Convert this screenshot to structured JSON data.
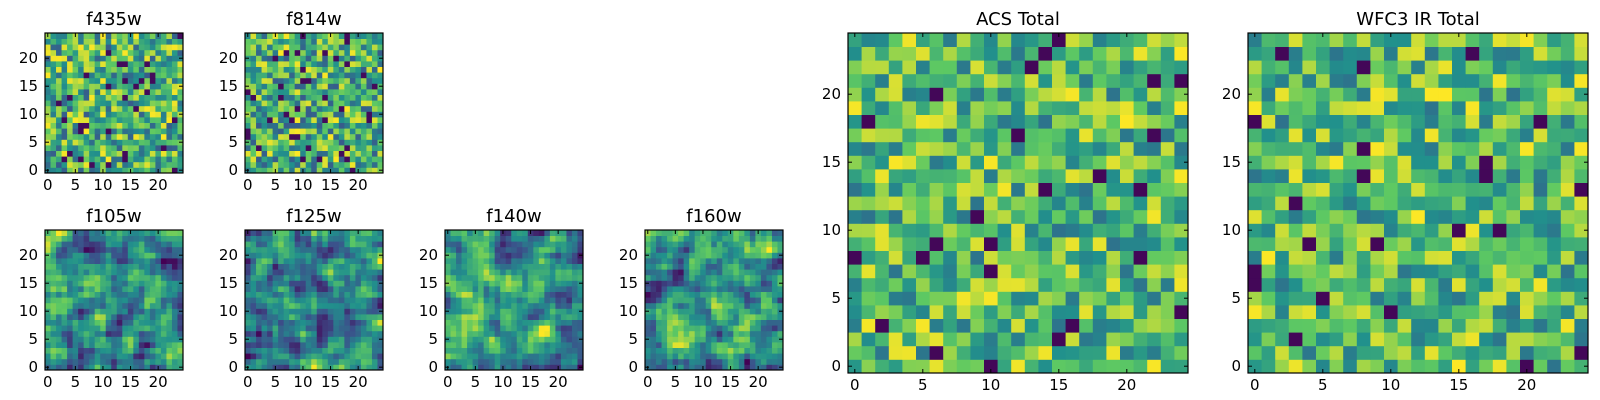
{
  "colormap": [
    "#440154",
    "#3b528b",
    "#21918c",
    "#5ec962",
    "#fde725"
  ],
  "chart_data": [
    {
      "type": "heatmap",
      "title": "f435w",
      "xticks": [
        0,
        5,
        10,
        15,
        20
      ],
      "yticks": [
        0,
        5,
        10,
        15,
        20
      ],
      "xlim": [
        0,
        24
      ],
      "ylim": [
        0,
        24
      ],
      "grid_size": 25,
      "texture": "noisy",
      "seed": 11
    },
    {
      "type": "heatmap",
      "title": "f814w",
      "xticks": [
        0,
        5,
        10,
        15,
        20
      ],
      "yticks": [
        0,
        5,
        10,
        15,
        20
      ],
      "xlim": [
        0,
        24
      ],
      "ylim": [
        0,
        24
      ],
      "grid_size": 25,
      "texture": "noisy",
      "seed": 23
    },
    {
      "type": "heatmap",
      "title": "f105w",
      "xticks": [
        0,
        5,
        10,
        15,
        20
      ],
      "yticks": [
        0,
        5,
        10,
        15,
        20
      ],
      "xlim": [
        0,
        24
      ],
      "ylim": [
        0,
        24
      ],
      "grid_size": 25,
      "texture": "smooth",
      "seed": 37
    },
    {
      "type": "heatmap",
      "title": "f125w",
      "xticks": [
        0,
        5,
        10,
        15,
        20
      ],
      "yticks": [
        0,
        5,
        10,
        15,
        20
      ],
      "xlim": [
        0,
        24
      ],
      "ylim": [
        0,
        24
      ],
      "grid_size": 25,
      "texture": "smooth",
      "seed": 41
    },
    {
      "type": "heatmap",
      "title": "f140w",
      "xticks": [
        0,
        5,
        10,
        15,
        20
      ],
      "yticks": [
        0,
        5,
        10,
        15,
        20
      ],
      "xlim": [
        0,
        24
      ],
      "ylim": [
        0,
        24
      ],
      "grid_size": 25,
      "texture": "smooth",
      "seed": 53
    },
    {
      "type": "heatmap",
      "title": "f160w",
      "xticks": [
        0,
        5,
        10,
        15,
        20
      ],
      "yticks": [
        0,
        5,
        10,
        15,
        20
      ],
      "xlim": [
        0,
        24
      ],
      "ylim": [
        0,
        24
      ],
      "grid_size": 25,
      "texture": "smooth",
      "seed": 67
    },
    {
      "type": "heatmap",
      "title": "ACS Total",
      "xticks": [
        0,
        5,
        10,
        15,
        20
      ],
      "yticks": [
        0,
        5,
        10,
        15,
        20
      ],
      "xlim": [
        0,
        24
      ],
      "ylim": [
        0,
        24
      ],
      "grid_size": 25,
      "texture": "blocky",
      "seed": 71
    },
    {
      "type": "heatmap",
      "title": "WFC3 IR Total",
      "xticks": [
        0,
        5,
        10,
        15,
        20
      ],
      "yticks": [
        0,
        5,
        10,
        15,
        20
      ],
      "xlim": [
        0,
        24
      ],
      "ylim": [
        0,
        24
      ],
      "grid_size": 25,
      "texture": "blocky",
      "seed": 89
    }
  ]
}
